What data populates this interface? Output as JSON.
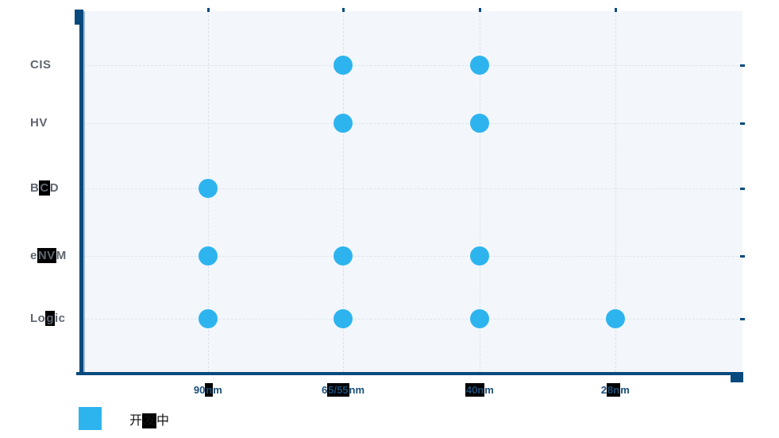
{
  "chart_data": {
    "type": "scatter",
    "title": "",
    "xlabel": "",
    "ylabel": "",
    "grid": "dashed",
    "legend_position": "bottom-left",
    "x_categories": [
      "90nm",
      "65/55nm",
      "40nm",
      "28nm"
    ],
    "y_categories_top_to_bottom": [
      "CIS",
      "HV",
      "BCD",
      "eNVM",
      "Logic"
    ],
    "points": [
      {
        "x": "65/55nm",
        "y": "CIS"
      },
      {
        "x": "40nm",
        "y": "CIS"
      },
      {
        "x": "65/55nm",
        "y": "HV"
      },
      {
        "x": "40nm",
        "y": "HV"
      },
      {
        "x": "90nm",
        "y": "BCD"
      },
      {
        "x": "90nm",
        "y": "eNVM"
      },
      {
        "x": "65/55nm",
        "y": "eNVM"
      },
      {
        "x": "40nm",
        "y": "eNVM"
      },
      {
        "x": "90nm",
        "y": "Logic"
      },
      {
        "x": "65/55nm",
        "y": "Logic"
      },
      {
        "x": "40nm",
        "y": "Logic"
      },
      {
        "x": "28nm",
        "y": "Logic"
      }
    ],
    "legend": [
      {
        "label": "开发中",
        "color": "#2db4ef"
      }
    ]
  },
  "labels": {
    "y_segments": [
      {
        "pre": "CIS",
        "hl": "",
        "post": ""
      },
      {
        "pre": "HV",
        "hl": "",
        "post": ""
      },
      {
        "pre": "B",
        "hl": "C",
        "post": "D"
      },
      {
        "pre": "e",
        "hl": "NV",
        "post": "M"
      },
      {
        "pre": "Lo",
        "hl": "g",
        "post": "ic"
      }
    ],
    "x_segments": [
      {
        "pre": "90",
        "hl": "n",
        "post": "m"
      },
      {
        "pre": "6",
        "hl": "5/55",
        "post": "nm"
      },
      {
        "pre": "",
        "hl": "40n",
        "post": "m"
      },
      {
        "pre": "2",
        "hl": "8n",
        "post": "m"
      }
    ],
    "legend_segments": {
      "pre": "开",
      "hl": "发",
      "post": "中"
    }
  },
  "colors": {
    "dot": "#2db4ef",
    "legend_swatch": "#2db4ef",
    "axis": "#084a7e",
    "x_label_text": "#1b4e79",
    "y_label_text": "#5f6570",
    "legend_text": "#111111",
    "grid_line": "#dde5ef",
    "plot_background": "#f3f6fb",
    "page_background": "#ffffff",
    "highlight_box": "#000000"
  }
}
